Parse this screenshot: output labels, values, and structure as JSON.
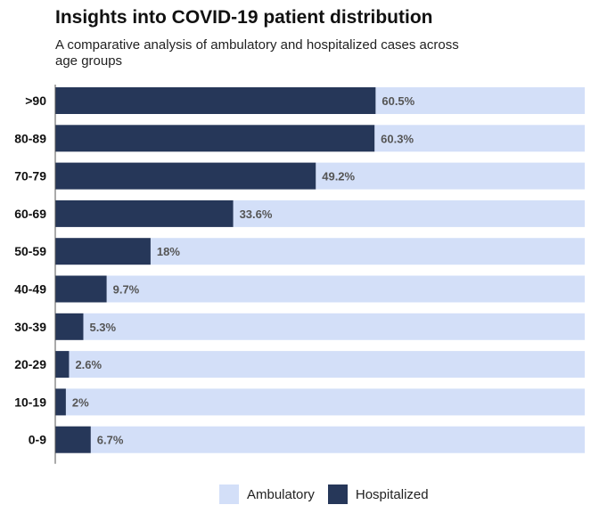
{
  "chart_data": {
    "type": "bar",
    "orientation": "horizontal",
    "stacked": true,
    "title": "Insights into COVID-19 patient distribution",
    "subtitle": "A comparative analysis of ambulatory and hospitalized cases across age groups",
    "categories": [
      ">90",
      "80-89",
      "70-79",
      "60-69",
      "50-59",
      "40-49",
      "30-39",
      "20-29",
      "10-19",
      "0-9"
    ],
    "series": [
      {
        "name": "Hospitalized",
        "color": "#263759",
        "values": [
          60.5,
          60.3,
          49.2,
          33.6,
          18,
          9.7,
          5.3,
          2.6,
          2,
          6.7
        ]
      },
      {
        "name": "Ambulatory",
        "color": "#d3dff8",
        "values": [
          39.5,
          39.7,
          50.8,
          66.4,
          82,
          90.3,
          94.7,
          97.4,
          98,
          93.3
        ]
      }
    ],
    "data_labels": [
      "60.5%",
      "60.3%",
      "49.2%",
      "33.6%",
      "18%",
      "9.7%",
      "5.3%",
      "2.6%",
      "2%",
      "6.7%"
    ],
    "xlim": [
      0,
      100
    ],
    "legend": {
      "position": "bottom",
      "order": [
        "Ambulatory",
        "Hospitalized"
      ]
    },
    "grid": false
  }
}
